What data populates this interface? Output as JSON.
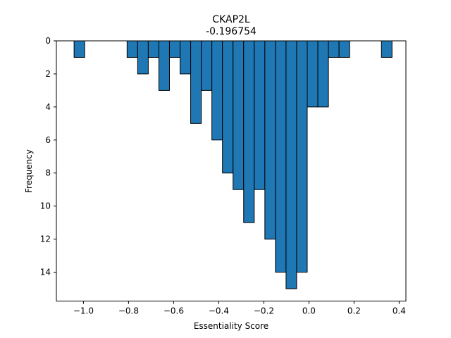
{
  "chart_data": {
    "type": "bar",
    "title": "CKAP2L",
    "subtitle": "-0.196754",
    "xlabel": "Essentiality Score",
    "ylabel": "Frequency",
    "xlim": [
      -1.12,
      0.43
    ],
    "ylim": [
      15.75,
      0
    ],
    "y_inverted": true,
    "x_ticks": [
      -1.0,
      -0.8,
      -0.6,
      -0.4,
      -0.2,
      0.0,
      0.2,
      0.4
    ],
    "x_tick_labels": [
      "−1.0",
      "−0.8",
      "−0.6",
      "−0.4",
      "−0.2",
      "0.0",
      "0.2",
      "0.4"
    ],
    "y_ticks": [
      0,
      2,
      4,
      6,
      8,
      10,
      12,
      14
    ],
    "y_tick_labels": [
      "0",
      "2",
      "4",
      "6",
      "8",
      "10",
      "12",
      "14"
    ],
    "bin_width": 0.047,
    "bins": [
      {
        "x": -1.018,
        "count": 1
      },
      {
        "x": -0.783,
        "count": 1
      },
      {
        "x": -0.736,
        "count": 2
      },
      {
        "x": -0.689,
        "count": 1
      },
      {
        "x": -0.642,
        "count": 3
      },
      {
        "x": -0.595,
        "count": 1
      },
      {
        "x": -0.548,
        "count": 2
      },
      {
        "x": -0.501,
        "count": 5
      },
      {
        "x": -0.454,
        "count": 3
      },
      {
        "x": -0.407,
        "count": 6
      },
      {
        "x": -0.36,
        "count": 8
      },
      {
        "x": -0.313,
        "count": 9
      },
      {
        "x": -0.266,
        "count": 11
      },
      {
        "x": -0.219,
        "count": 9
      },
      {
        "x": -0.172,
        "count": 12
      },
      {
        "x": -0.125,
        "count": 14
      },
      {
        "x": -0.078,
        "count": 15
      },
      {
        "x": -0.031,
        "count": 14
      },
      {
        "x": 0.016,
        "count": 4
      },
      {
        "x": 0.063,
        "count": 4
      },
      {
        "x": 0.11,
        "count": 1
      },
      {
        "x": 0.157,
        "count": 1
      },
      {
        "x": 0.345,
        "count": 1
      }
    ],
    "bar_color": "#1f77b4",
    "edge_color": "#000000",
    "grid": false,
    "legend": "none"
  }
}
